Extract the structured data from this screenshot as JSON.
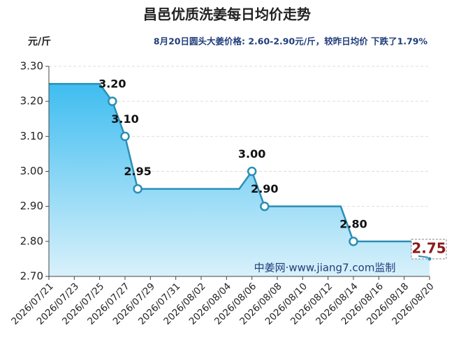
{
  "chart_data": {
    "type": "area",
    "title": "昌邑优质洗姜每日均价走势",
    "y_unit": "元/斤",
    "subtitle": "8月20日圆头大姜价格: 2.60-2.90元/斤，较昨日均价 下跌了1.79%",
    "watermark": "中姜网·www.jiang7.com监制",
    "categories": [
      "2026/07/21",
      null,
      "2026/07/23",
      null,
      "2026/07/25",
      null,
      "2026/07/27",
      null,
      "2026/07/29",
      null,
      "2026/07/31",
      null,
      "2026/08/02",
      null,
      "2026/08/04",
      null,
      "2026/08/06",
      null,
      "2026/08/08",
      null,
      "2026/08/10",
      null,
      "2026/08/12",
      null,
      "2026/08/14",
      null,
      "2026/08/16",
      null,
      "2026/08/18",
      null,
      "2026/08/20"
    ],
    "values": [
      3.25,
      3.25,
      3.25,
      3.25,
      3.25,
      3.2,
      3.1,
      2.95,
      2.95,
      2.95,
      2.95,
      2.95,
      2.95,
      2.95,
      2.95,
      2.95,
      3.0,
      2.9,
      2.9,
      2.9,
      2.9,
      2.9,
      2.9,
      2.9,
      2.8,
      2.8,
      2.8,
      2.8,
      2.8,
      2.8,
      2.75
    ],
    "value_labels": [
      null,
      null,
      null,
      null,
      null,
      "3.20",
      "3.10",
      "2.95",
      null,
      null,
      null,
      null,
      null,
      null,
      null,
      null,
      "3.00",
      "2.90",
      null,
      null,
      null,
      null,
      null,
      null,
      "2.80",
      null,
      null,
      null,
      null,
      null,
      "2.75"
    ],
    "highlight_last": true,
    "color": "#2a8fb5",
    "ylim": [
      2.7,
      3.3
    ],
    "yticks": [
      {
        "value": 2.7,
        "label": "2.70"
      },
      {
        "value": 2.8,
        "label": "2.80"
      },
      {
        "value": 2.9,
        "label": "2.90"
      },
      {
        "value": 3.0,
        "label": "3.00"
      },
      {
        "value": 3.1,
        "label": "3.10"
      },
      {
        "value": 3.2,
        "label": "3.20"
      },
      {
        "value": 3.3,
        "label": "3.30"
      }
    ],
    "grid": true
  }
}
